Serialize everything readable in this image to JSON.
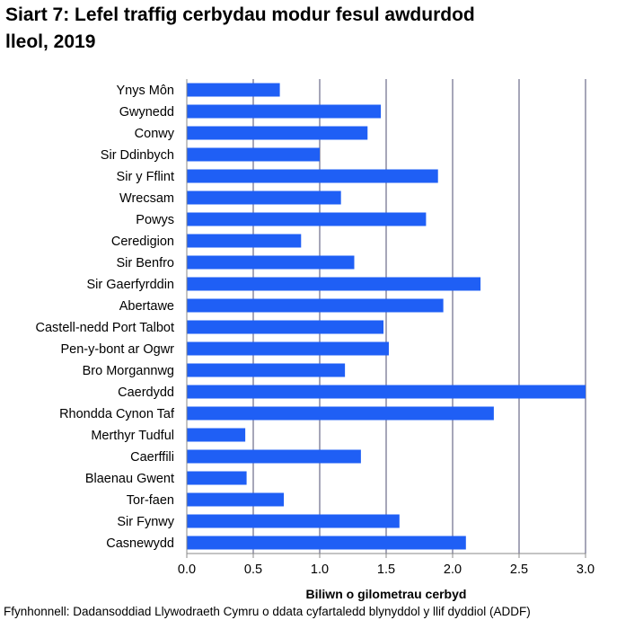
{
  "title_line1": "Siart 7: Lefel traffig cerbydau modur fesul awdurdod",
  "title_line2": "lleol, 2019",
  "source": "Ffynhonnell: Dadansoddiad Llywodraeth Cymru o ddata cyfartaledd blynyddol y llif dyddiol (ADDF)",
  "colors": {
    "bar": "#1f5ff5",
    "grid": "#6b6b8a",
    "axis": "#888888"
  },
  "chart_data": {
    "type": "bar",
    "orientation": "horizontal",
    "title": "Siart 7: Lefel traffig cerbydau modur fesul awdurdod lleol, 2019",
    "xlabel": "Biliwn o gilometrau cerbyd",
    "ylabel": "",
    "xlim": [
      0,
      3
    ],
    "xticks": [
      "0.0",
      "0.5",
      "1.0",
      "1.5",
      "2.0",
      "2.5",
      "3.0"
    ],
    "grid": true,
    "legend": "none",
    "categories": [
      "Ynys Môn",
      "Gwynedd",
      "Conwy",
      "Sir Ddinbych",
      "Sir y Fflint",
      "Wrecsam",
      "Powys",
      "Ceredigion",
      "Sir Benfro",
      "Sir Gaerfyrddin",
      "Abertawe",
      "Castell-nedd Port Talbot",
      "Pen-y-bont ar Ogwr",
      "Bro Morgannwg",
      "Caerdydd",
      "Rhondda Cynon Taf",
      "Merthyr Tudful",
      "Caerffili",
      "Blaenau Gwent",
      "Tor-faen",
      "Sir Fynwy",
      "Casnewydd"
    ],
    "values": [
      0.7,
      1.46,
      1.36,
      1.0,
      1.89,
      1.16,
      1.8,
      0.86,
      1.26,
      2.21,
      1.93,
      1.48,
      1.52,
      1.19,
      3.0,
      2.31,
      0.44,
      1.31,
      0.45,
      0.73,
      1.6,
      2.1
    ]
  }
}
